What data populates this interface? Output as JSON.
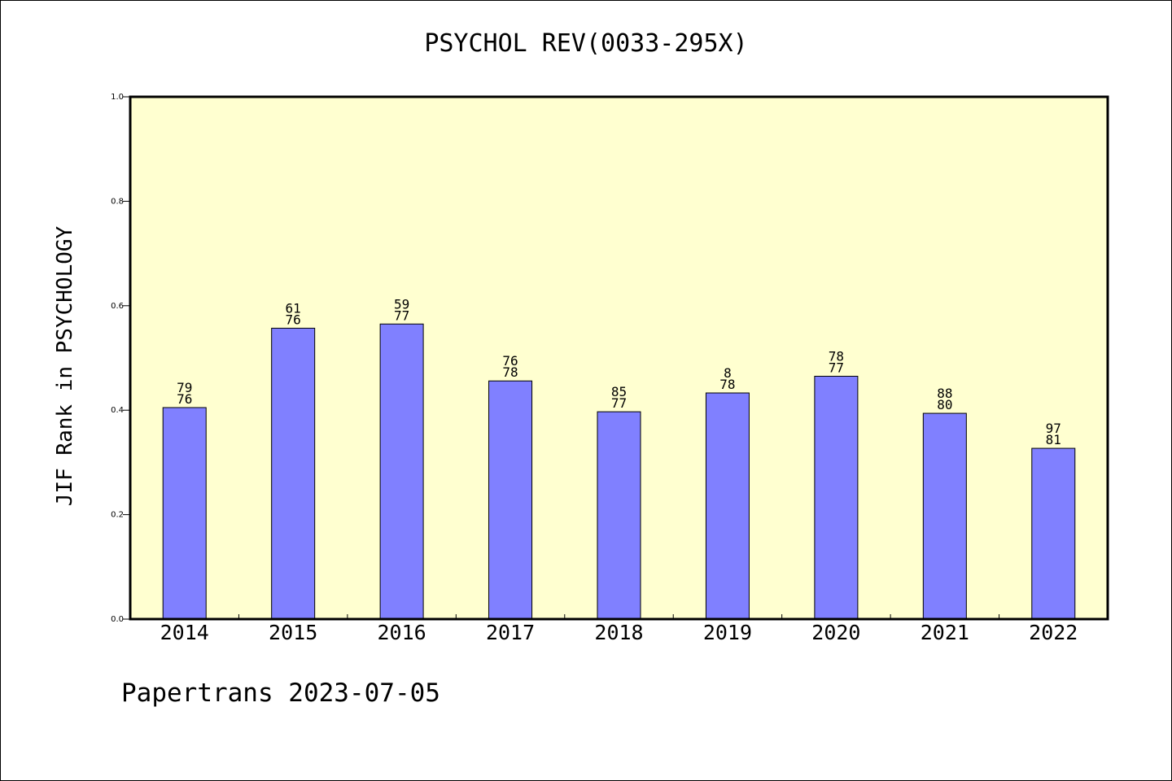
{
  "chart_data": {
    "type": "bar",
    "title": "PSYCHOL REV(0033-295X)",
    "xlabel": "",
    "ylabel": "JIF Rank in PSYCHOLOGY",
    "categories": [
      "2014",
      "2015",
      "2016",
      "2017",
      "2018",
      "2019",
      "2020",
      "2021",
      "2022"
    ],
    "values": [
      0.405,
      0.557,
      0.565,
      0.456,
      0.397,
      0.433,
      0.465,
      0.394,
      0.327
    ],
    "bar_labels": [
      [
        "79",
        "76"
      ],
      [
        "61",
        "76"
      ],
      [
        "59",
        "77"
      ],
      [
        "76",
        "78"
      ],
      [
        "85",
        "77"
      ],
      [
        "8",
        "78"
      ],
      [
        "78",
        "77"
      ],
      [
        "88",
        "80"
      ],
      [
        "97",
        "81"
      ]
    ],
    "ylim": [
      0,
      1.0
    ],
    "yticks": [
      "0.0",
      "0.2",
      "0.4",
      "0.6",
      "0.8",
      "1.0"
    ],
    "grid": false,
    "colors": {
      "bar": "#8080ff",
      "plot_background": "#ffffd0"
    }
  },
  "footer": {
    "credit": "Papertrans 2023-07-05"
  }
}
